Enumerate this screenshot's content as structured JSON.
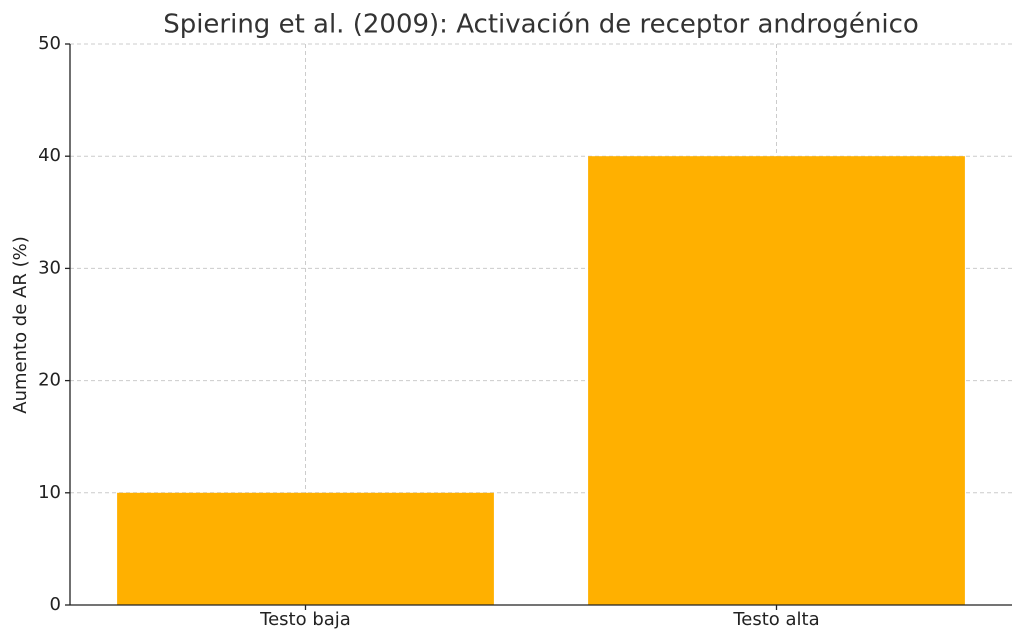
{
  "chart_data": {
    "type": "bar",
    "title": "Spiering et al. (2009): Activación de receptor androgénico",
    "ylabel": "Aumento de AR (%)",
    "categories": [
      "Testo baja",
      "Testo alta"
    ],
    "values": [
      10,
      40
    ],
    "color": "#ffb000",
    "ylim": [
      0,
      50
    ],
    "yticks": [
      0,
      10,
      20,
      30,
      40,
      50
    ],
    "grid": true
  }
}
